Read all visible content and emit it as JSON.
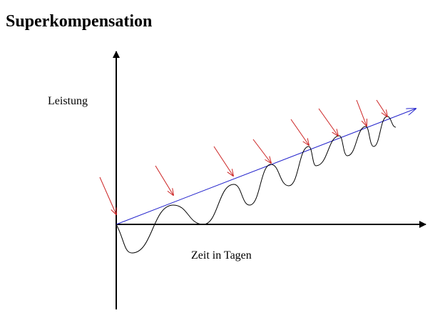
{
  "title": "Superkompensation",
  "axes": {
    "y_label": "Leistung",
    "x_label": "Zeit in Tagen"
  }
}
